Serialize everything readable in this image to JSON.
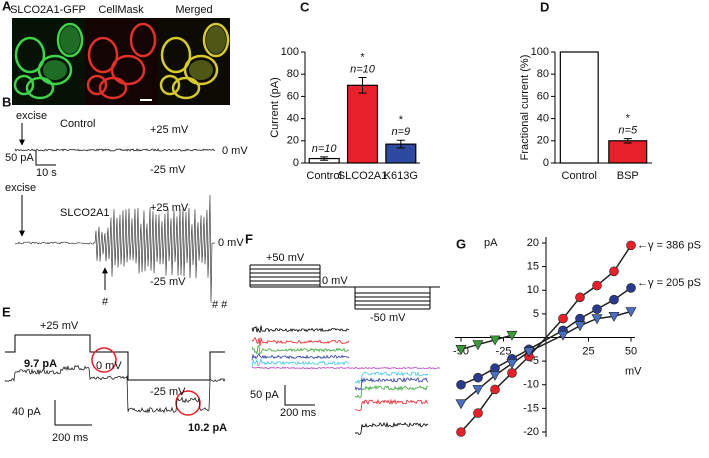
{
  "figure": {
    "panel_labels": [
      "A",
      "B",
      "C",
      "D",
      "E",
      "F",
      "G"
    ],
    "A": {
      "titles": [
        "SLCO2A1-GFP",
        "CellMask",
        "Merged"
      ]
    },
    "B": {
      "texts": [
        "excise",
        "Control",
        "+25 mV",
        "-25 mV",
        "0 mV",
        "50 pA",
        "10 s",
        "excise",
        "SLCO2A1",
        "+25 mV",
        "0 mV",
        "-25 mV",
        "#",
        "# #"
      ]
    },
    "E": {
      "texts": [
        "+25 mV",
        "0 mV",
        "-25 mV",
        "9.7 pA",
        "40 pA",
        "200 ms",
        "10.2 pA"
      ]
    },
    "F": {
      "texts": [
        "+50 mV",
        "0 mV",
        "-50 mV",
        "50 pA",
        "200 ms"
      ]
    }
  },
  "chart_data": [
    {
      "type": "bar",
      "ylabel": "Current (pA)",
      "categories": [
        "Control",
        "SLCO2A1",
        "K613G"
      ],
      "values": [
        4,
        70,
        17
      ],
      "errors": [
        1.5,
        7,
        3.5
      ],
      "colors": [
        "#ffffff",
        "#e8202a",
        "#2e4aa0"
      ],
      "label_color": "#1aa3a3",
      "n_labels": [
        "n=10",
        "n=10",
        "n=9"
      ],
      "stars": [
        null,
        "*",
        "*"
      ],
      "ylim": [
        0,
        100
      ],
      "yticks": [
        0,
        20,
        40,
        60,
        80,
        100
      ]
    },
    {
      "type": "bar",
      "ylabel": "Fractional current (%)",
      "categories": [
        "Control",
        "BSP"
      ],
      "values": [
        100,
        20
      ],
      "errors": [
        0,
        2
      ],
      "colors": [
        "#ffffff",
        "#e8202a"
      ],
      "label_color": "#1aa3a3",
      "n_labels": [
        null,
        "n=5"
      ],
      "stars": [
        null,
        "*"
      ],
      "ylim": [
        0,
        100
      ],
      "yticks": [
        0,
        20,
        40,
        60,
        80,
        100
      ]
    },
    {
      "type": "scatter",
      "xlabel": "mV",
      "ylabel": "pA",
      "x": [
        -50,
        -40,
        -30,
        -20,
        -10,
        10,
        20,
        30,
        40,
        50
      ],
      "series": [
        {
          "color": "#e8202a",
          "marker": "circle",
          "values": [
            -20,
            -16,
            -11,
            -7.5,
            -4,
            4,
            8.5,
            11,
            14,
            19.5
          ]
        },
        {
          "color": "#2a3a8c",
          "marker": "circle",
          "values": [
            -10,
            -8.5,
            -6.5,
            -4.5,
            -2.5,
            1.5,
            4,
            6,
            8,
            10.5
          ]
        },
        {
          "color": "#4a6fc0",
          "marker": "triangle",
          "values": [
            -14,
            -11,
            -8,
            -5.5,
            -3,
            0.5,
            2.5,
            4,
            4.5,
            5.5
          ]
        },
        {
          "color": "#3a9a3a",
          "marker": "triangle",
          "values": [
            -2.5,
            -1.5,
            -0.5,
            0.5,
            null,
            null,
            null,
            null,
            null,
            null
          ]
        }
      ],
      "annotations": [
        {
          "text": "←γ = 386 pS",
          "color": "#e8202a"
        },
        {
          "text": "←γ = 205 pS",
          "color": "#4a6fc0"
        }
      ],
      "xlim": [
        -50,
        50
      ],
      "ylim": [
        -20,
        20
      ],
      "xticks": [
        -50,
        -25,
        25,
        50
      ],
      "yticks": [
        -20,
        -15,
        -10,
        -5,
        5,
        10,
        15,
        20
      ]
    }
  ]
}
